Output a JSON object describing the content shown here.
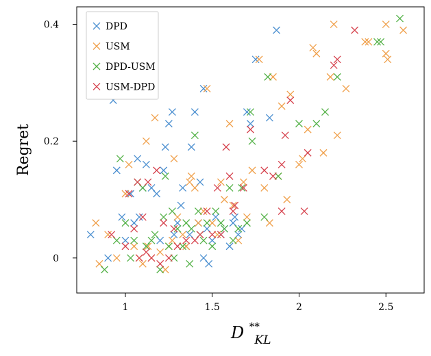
{
  "chart_data": {
    "type": "scatter",
    "xlabel": "D**KL",
    "xlabel_main": "D",
    "xlabel_sup": "**",
    "xlabel_sub": "KL",
    "ylabel": "Regret",
    "xlim": [
      0.72,
      2.72
    ],
    "ylim": [
      -0.06,
      0.43
    ],
    "xticks": [
      1,
      1.5,
      2,
      2.5
    ],
    "xtick_labels": [
      "1",
      "1.5",
      "2",
      "2.5"
    ],
    "yticks": [
      0,
      0.2,
      0.4
    ],
    "ytick_labels": [
      "0",
      "0.2",
      "0.4"
    ],
    "grid": false,
    "legend_position": "top-left",
    "marker": "x",
    "series": [
      {
        "name": "DPD",
        "color": "#4b8fd0",
        "points": [
          [
            0.8,
            0.04
          ],
          [
            0.9,
            0.0
          ],
          [
            0.93,
            0.27
          ],
          [
            0.95,
            0.15
          ],
          [
            0.98,
            0.07
          ],
          [
            1.0,
            0.03
          ],
          [
            1.03,
            0.11
          ],
          [
            1.05,
            0.06
          ],
          [
            1.07,
            0.17
          ],
          [
            1.08,
            0.07
          ],
          [
            1.1,
            0.12
          ],
          [
            1.12,
            0.16
          ],
          [
            1.15,
            0.12
          ],
          [
            1.18,
            0.11
          ],
          [
            1.2,
            0.03
          ],
          [
            1.22,
            0.15
          ],
          [
            1.23,
            0.19
          ],
          [
            1.25,
            0.23
          ],
          [
            1.27,
            0.25
          ],
          [
            1.28,
            0.04
          ],
          [
            1.3,
            0.06
          ],
          [
            1.32,
            0.09
          ],
          [
            1.33,
            0.12
          ],
          [
            1.35,
            0.02
          ],
          [
            1.37,
            0.04
          ],
          [
            1.38,
            0.19
          ],
          [
            1.4,
            0.25
          ],
          [
            1.42,
            0.06
          ],
          [
            1.43,
            0.13
          ],
          [
            1.45,
            0.29
          ],
          [
            1.45,
            0.0
          ],
          [
            1.47,
            0.05
          ],
          [
            1.48,
            -0.01
          ],
          [
            1.5,
            0.03
          ],
          [
            1.52,
            0.07
          ],
          [
            1.55,
            0.04
          ],
          [
            1.57,
            0.05
          ],
          [
            1.6,
            0.02
          ],
          [
            1.62,
            0.06
          ],
          [
            1.63,
            0.07
          ],
          [
            1.65,
            0.04
          ],
          [
            1.67,
            0.05
          ],
          [
            1.7,
            0.25
          ],
          [
            1.72,
            0.23
          ],
          [
            1.75,
            0.34
          ],
          [
            1.83,
            0.24
          ],
          [
            1.87,
            0.39
          ]
        ]
      },
      {
        "name": "USM",
        "color": "#f0a04b",
        "points": [
          [
            0.83,
            0.06
          ],
          [
            0.85,
            -0.01
          ],
          [
            0.9,
            0.04
          ],
          [
            0.95,
            0.0
          ],
          [
            1.0,
            0.11
          ],
          [
            1.02,
            0.16
          ],
          [
            1.05,
            0.02
          ],
          [
            1.08,
            0.0
          ],
          [
            1.1,
            -0.01
          ],
          [
            1.12,
            0.2
          ],
          [
            1.13,
            0.02
          ],
          [
            1.15,
            0.0
          ],
          [
            1.17,
            0.24
          ],
          [
            1.2,
            0.01
          ],
          [
            1.23,
            -0.02
          ],
          [
            1.25,
            0.02
          ],
          [
            1.27,
            0.03
          ],
          [
            1.28,
            0.17
          ],
          [
            1.3,
            0.07
          ],
          [
            1.33,
            0.04
          ],
          [
            1.35,
            0.02
          ],
          [
            1.37,
            0.13
          ],
          [
            1.38,
            0.14
          ],
          [
            1.4,
            0.12
          ],
          [
            1.42,
            0.06
          ],
          [
            1.45,
            0.08
          ],
          [
            1.47,
            0.29
          ],
          [
            1.5,
            0.06
          ],
          [
            1.53,
            0.04
          ],
          [
            1.55,
            0.13
          ],
          [
            1.57,
            0.1
          ],
          [
            1.6,
            0.23
          ],
          [
            1.62,
            0.09
          ],
          [
            1.65,
            0.03
          ],
          [
            1.68,
            0.13
          ],
          [
            1.7,
            0.07
          ],
          [
            1.73,
            0.15
          ],
          [
            1.77,
            0.34
          ],
          [
            1.8,
            0.12
          ],
          [
            1.83,
            0.06
          ],
          [
            1.85,
            0.31
          ],
          [
            1.88,
            0.14
          ],
          [
            1.9,
            0.26
          ],
          [
            1.93,
            0.1
          ],
          [
            1.95,
            0.28
          ],
          [
            2.0,
            0.16
          ],
          [
            2.02,
            0.17
          ],
          [
            2.05,
            0.22
          ],
          [
            2.08,
            0.36
          ],
          [
            2.1,
            0.35
          ],
          [
            2.14,
            0.18
          ],
          [
            2.18,
            0.31
          ],
          [
            2.2,
            0.4
          ],
          [
            2.22,
            0.21
          ],
          [
            2.27,
            0.29
          ],
          [
            2.38,
            0.37
          ],
          [
            2.4,
            0.37
          ],
          [
            2.5,
            0.35
          ],
          [
            2.51,
            0.34
          ],
          [
            2.5,
            0.4
          ],
          [
            2.6,
            0.39
          ]
        ]
      },
      {
        "name": "DPD-USM",
        "color": "#55b249",
        "points": [
          [
            0.88,
            -0.02
          ],
          [
            0.95,
            0.03
          ],
          [
            0.97,
            0.17
          ],
          [
            1.0,
            0.06
          ],
          [
            1.03,
            0.0
          ],
          [
            1.05,
            0.03
          ],
          [
            1.07,
            0.13
          ],
          [
            1.1,
            0.12
          ],
          [
            1.12,
            0.02
          ],
          [
            1.15,
            0.03
          ],
          [
            1.17,
            0.04
          ],
          [
            1.2,
            -0.02
          ],
          [
            1.22,
            0.07
          ],
          [
            1.23,
            0.14
          ],
          [
            1.25,
            0.02
          ],
          [
            1.27,
            0.08
          ],
          [
            1.28,
            0.0
          ],
          [
            1.3,
            0.05
          ],
          [
            1.33,
            0.02
          ],
          [
            1.35,
            0.06
          ],
          [
            1.37,
            -0.01
          ],
          [
            1.38,
            0.05
          ],
          [
            1.4,
            0.21
          ],
          [
            1.42,
            0.08
          ],
          [
            1.43,
            0.04
          ],
          [
            1.45,
            0.03
          ],
          [
            1.47,
            0.06
          ],
          [
            1.5,
            0.02
          ],
          [
            1.52,
            0.08
          ],
          [
            1.55,
            0.06
          ],
          [
            1.57,
            0.05
          ],
          [
            1.6,
            0.12
          ],
          [
            1.62,
            0.03
          ],
          [
            1.65,
            0.05
          ],
          [
            1.67,
            0.12
          ],
          [
            1.7,
            0.06
          ],
          [
            1.72,
            0.25
          ],
          [
            1.73,
            0.2
          ],
          [
            1.8,
            0.07
          ],
          [
            1.82,
            0.31
          ],
          [
            1.88,
            0.14
          ],
          [
            2.0,
            0.23
          ],
          [
            2.1,
            0.23
          ],
          [
            2.15,
            0.25
          ],
          [
            2.22,
            0.31
          ],
          [
            2.45,
            0.37
          ],
          [
            2.47,
            0.37
          ],
          [
            2.58,
            0.41
          ]
        ]
      },
      {
        "name": "USM-DPD",
        "color": "#d6434e",
        "points": [
          [
            0.92,
            0.04
          ],
          [
            1.0,
            0.02
          ],
          [
            1.02,
            0.11
          ],
          [
            1.05,
            0.05
          ],
          [
            1.07,
            0.13
          ],
          [
            1.08,
            0.0
          ],
          [
            1.1,
            0.07
          ],
          [
            1.12,
            0.01
          ],
          [
            1.13,
            0.13
          ],
          [
            1.15,
            0.0
          ],
          [
            1.18,
            0.15
          ],
          [
            1.2,
            -0.01
          ],
          [
            1.22,
            0.06
          ],
          [
            1.25,
            0.0
          ],
          [
            1.28,
            0.05
          ],
          [
            1.3,
            0.02
          ],
          [
            1.35,
            0.03
          ],
          [
            1.4,
            0.03
          ],
          [
            1.43,
            0.04
          ],
          [
            1.47,
            0.08
          ],
          [
            1.5,
            0.04
          ],
          [
            1.53,
            0.12
          ],
          [
            1.55,
            0.04
          ],
          [
            1.58,
            0.19
          ],
          [
            1.6,
            0.14
          ],
          [
            1.62,
            0.08
          ],
          [
            1.63,
            0.09
          ],
          [
            1.68,
            0.12
          ],
          [
            1.72,
            0.22
          ],
          [
            1.8,
            0.15
          ],
          [
            1.85,
            0.14
          ],
          [
            1.9,
            0.16
          ],
          [
            1.95,
            0.27
          ],
          [
            1.9,
            0.08
          ],
          [
            1.92,
            0.21
          ],
          [
            2.03,
            0.08
          ],
          [
            2.05,
            0.18
          ],
          [
            2.2,
            0.33
          ],
          [
            2.22,
            0.34
          ],
          [
            2.32,
            0.39
          ]
        ]
      }
    ]
  }
}
